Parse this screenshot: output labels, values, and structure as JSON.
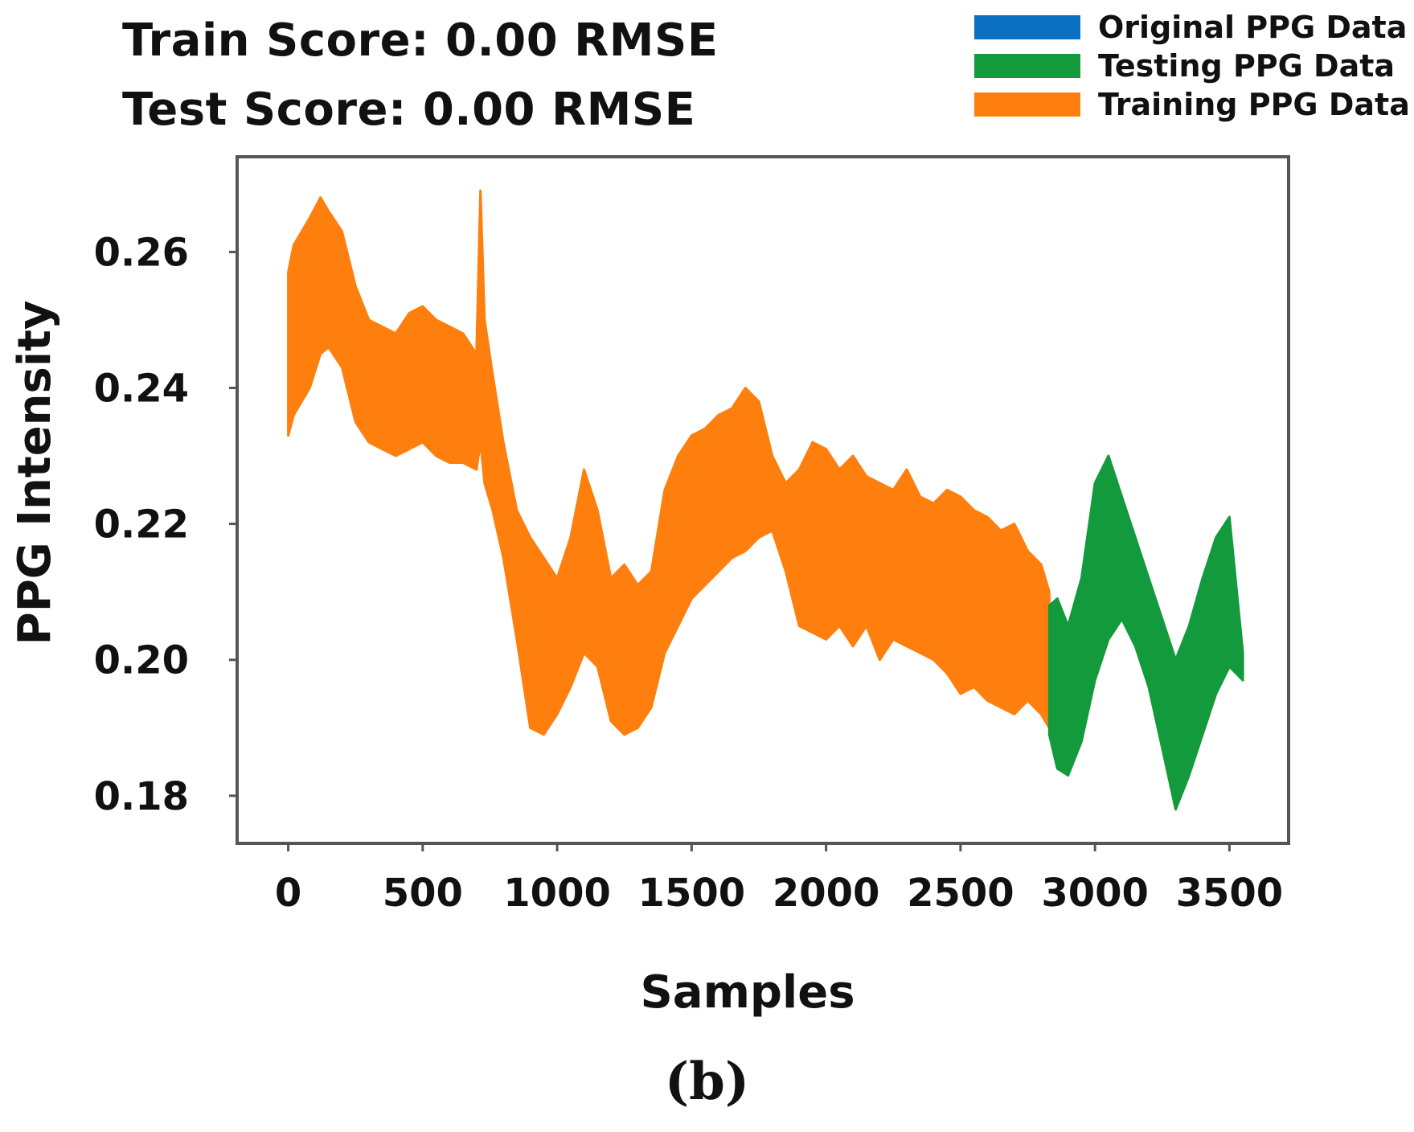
{
  "scores": {
    "train": "Train Score: 0.00 RMSE",
    "test": "Test Score: 0.00 RMSE"
  },
  "legend": [
    {
      "label": "Original PPG Data",
      "color": "#0b6fc2"
    },
    {
      "label": "Testing PPG Data",
      "color": "#139a3c"
    },
    {
      "label": "Training PPG Data",
      "color": "#ff7f0e"
    }
  ],
  "caption": "(b)",
  "chart_data": {
    "type": "area",
    "title": "",
    "xlabel": "Samples",
    "ylabel": "PPG Intensity",
    "xlim": [
      -190,
      3720
    ],
    "ylim": [
      0.173,
      0.274
    ],
    "xticks": [
      0,
      500,
      1000,
      1500,
      2000,
      2500,
      3000,
      3500
    ],
    "yticks": [
      0.18,
      0.2,
      0.22,
      0.24,
      0.26
    ],
    "ytick_labels": [
      "0.18",
      "0.20",
      "0.22",
      "0.24",
      "0.26"
    ],
    "grid": false,
    "legend_position": "top-right",
    "series": [
      {
        "name": "Original PPG Data",
        "color": "#0b6fc2",
        "note_hidden": true,
        "x": [],
        "upper": [],
        "lower": []
      },
      {
        "name": "Training PPG Data",
        "color": "#ff7f0e",
        "x": [
          0,
          20,
          50,
          80,
          120,
          150,
          200,
          250,
          300,
          350,
          400,
          450,
          500,
          550,
          600,
          650,
          700,
          715,
          730,
          760,
          800,
          850,
          900,
          950,
          1000,
          1050,
          1100,
          1150,
          1200,
          1250,
          1300,
          1350,
          1400,
          1450,
          1500,
          1550,
          1600,
          1650,
          1700,
          1750,
          1800,
          1850,
          1900,
          1950,
          2000,
          2050,
          2100,
          2150,
          2200,
          2250,
          2300,
          2350,
          2400,
          2450,
          2500,
          2550,
          2600,
          2650,
          2700,
          2750,
          2800,
          2830
        ],
        "upper": [
          0.257,
          0.261,
          0.263,
          0.265,
          0.268,
          0.266,
          0.263,
          0.255,
          0.25,
          0.249,
          0.248,
          0.251,
          0.252,
          0.25,
          0.249,
          0.248,
          0.245,
          0.269,
          0.25,
          0.242,
          0.232,
          0.222,
          0.218,
          0.215,
          0.212,
          0.218,
          0.228,
          0.222,
          0.212,
          0.214,
          0.211,
          0.213,
          0.225,
          0.23,
          0.233,
          0.234,
          0.236,
          0.237,
          0.24,
          0.238,
          0.23,
          0.226,
          0.228,
          0.232,
          0.231,
          0.228,
          0.23,
          0.227,
          0.226,
          0.225,
          0.228,
          0.224,
          0.223,
          0.225,
          0.224,
          0.222,
          0.221,
          0.219,
          0.22,
          0.216,
          0.214,
          0.21
        ],
        "lower": [
          0.233,
          0.236,
          0.238,
          0.24,
          0.245,
          0.246,
          0.243,
          0.235,
          0.232,
          0.231,
          0.23,
          0.231,
          0.232,
          0.23,
          0.229,
          0.229,
          0.228,
          0.232,
          0.226,
          0.222,
          0.215,
          0.203,
          0.19,
          0.189,
          0.192,
          0.196,
          0.201,
          0.199,
          0.191,
          0.189,
          0.19,
          0.193,
          0.201,
          0.205,
          0.209,
          0.211,
          0.213,
          0.215,
          0.216,
          0.218,
          0.219,
          0.213,
          0.205,
          0.204,
          0.203,
          0.205,
          0.202,
          0.205,
          0.2,
          0.203,
          0.202,
          0.201,
          0.2,
          0.198,
          0.195,
          0.196,
          0.194,
          0.193,
          0.192,
          0.194,
          0.192,
          0.19
        ]
      },
      {
        "name": "Testing PPG Data",
        "color": "#139a3c",
        "x": [
          2830,
          2860,
          2900,
          2950,
          3000,
          3050,
          3100,
          3150,
          3200,
          3250,
          3300,
          3350,
          3400,
          3450,
          3500,
          3550
        ],
        "upper": [
          0.208,
          0.209,
          0.205,
          0.212,
          0.226,
          0.23,
          0.224,
          0.218,
          0.212,
          0.206,
          0.2,
          0.205,
          0.212,
          0.218,
          0.221,
          0.201
        ],
        "lower": [
          0.189,
          0.184,
          0.183,
          0.188,
          0.197,
          0.203,
          0.206,
          0.202,
          0.196,
          0.187,
          0.178,
          0.183,
          0.189,
          0.195,
          0.199,
          0.197
        ]
      }
    ]
  }
}
